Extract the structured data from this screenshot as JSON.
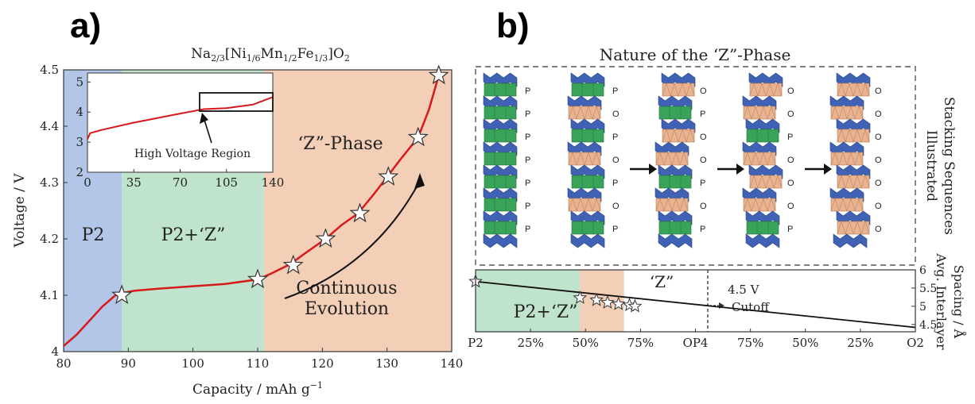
{
  "panel_a": {
    "label": "a)",
    "title": "Na2/3[Ni1/6Mn1/2Fe1/3]O2",
    "region_labels": {
      "p2": "P2",
      "mixed": "P2+‘Z”",
      "z_phase": "‘Z”-Phase"
    },
    "annotation": {
      "line1": "Continuous",
      "line2": "Evolution"
    },
    "inset_label": "High Voltage Region",
    "colors": {
      "p2": "#b4c6e7",
      "mixed": "#bfe3cc",
      "z": "#f3cfb7",
      "curve": "#d7191c"
    }
  },
  "panel_b": {
    "label": "b)",
    "title": "Nature of the ‘Z”-Phase",
    "side_label": {
      "line1": "Illustrated",
      "line2": "Stacking Sequences"
    },
    "stacks": [
      {
        "letters": [
          "P",
          "P",
          "P",
          "P",
          "P",
          "P",
          "P"
        ]
      },
      {
        "letters": [
          "P",
          "O",
          "P",
          "O",
          "P",
          "O",
          "P"
        ]
      },
      {
        "letters": [
          "O",
          "P",
          "O",
          "O",
          "P",
          "O",
          "P"
        ]
      },
      {
        "letters": [
          "O",
          "O",
          "P",
          "O",
          "O",
          "O",
          "P"
        ]
      },
      {
        "letters": [
          "O",
          "O",
          "O",
          "O",
          "O",
          "O",
          "O"
        ]
      }
    ],
    "region_labels": {
      "mixed": "P2+‘Z”",
      "z": "‘Z”"
    },
    "cutoff_label": {
      "line1": "4.5 V",
      "line2": "Cutoff"
    },
    "colors": {
      "blue": "#3f62b5",
      "orange": "#e9b38f",
      "green": "#3aa35a",
      "mixed": "#bfe3cc",
      "z": "#f3cfb7"
    }
  },
  "chart_data": [
    {
      "type": "line",
      "title": "Na2/3[Ni1/6Mn1/2Fe1/3]O2",
      "xlabel": "Capacity / mAh g−1",
      "ylabel": "Voltage / V",
      "xlim": [
        80,
        140
      ],
      "ylim": [
        4.0,
        4.5
      ],
      "x_ticks": [
        "80",
        "90",
        "100",
        "110",
        "120",
        "130",
        "140"
      ],
      "y_ticks": [
        "4",
        "4.1",
        "4.2",
        "4.3",
        "4.4",
        "4.5"
      ],
      "regions": [
        {
          "name": "P2",
          "x": [
            80,
            89
          ]
        },
        {
          "name": "P2+‘Z”",
          "x": [
            89,
            111
          ]
        },
        {
          "name": "‘Z”-Phase",
          "x": [
            111,
            140
          ]
        }
      ],
      "x": [
        80,
        82,
        84,
        86,
        88,
        89,
        91,
        95,
        100,
        105,
        110,
        112,
        115,
        118,
        120.5,
        123,
        125.5,
        128,
        130,
        132,
        134.8,
        136.5,
        138
      ],
      "y": [
        4.01,
        4.03,
        4.055,
        4.08,
        4.1,
        4.104,
        4.108,
        4.112,
        4.116,
        4.12,
        4.128,
        4.138,
        4.155,
        4.18,
        4.2,
        4.225,
        4.245,
        4.28,
        4.31,
        4.34,
        4.38,
        4.43,
        4.49
      ],
      "markers": {
        "x": [
          89,
          110,
          115.5,
          120.5,
          125.8,
          130.2,
          134.8,
          138
        ],
        "y": [
          4.1,
          4.128,
          4.153,
          4.2,
          4.245,
          4.31,
          4.38,
          4.49
        ]
      }
    },
    {
      "type": "line",
      "title": "",
      "xlabel": "",
      "ylabel": "",
      "xlim": [
        0,
        140
      ],
      "ylim": [
        2,
        5.3
      ],
      "x_ticks": [
        "0",
        "35",
        "70",
        "105",
        "140"
      ],
      "y_ticks": [
        "2",
        "3",
        "4",
        "5"
      ],
      "x": [
        0,
        2,
        10,
        35,
        70,
        88,
        105,
        125,
        140
      ],
      "y": [
        3.1,
        3.3,
        3.4,
        3.65,
        3.95,
        4.1,
        4.13,
        4.25,
        4.5
      ]
    },
    {
      "type": "line",
      "title": "",
      "xlabel": "",
      "ylabel": "Avg. Interlayer Spacing / Å",
      "ylim": [
        4.3,
        6.0
      ],
      "x_ticks": [
        "P2",
        "25%",
        "50%",
        "75%",
        "OP4",
        "75%",
        "50%",
        "25%",
        "O2"
      ],
      "y_ticks": [
        "4.5",
        "5",
        "5.5",
        "6"
      ],
      "regions": [
        {
          "name": "P2+‘Z”",
          "x": [
            0,
            0.95
          ]
        },
        {
          "name": "‘Z”",
          "x": [
            0.95,
            1.35
          ]
        }
      ],
      "x": [
        0,
        4
      ],
      "y": [
        5.68,
        4.42
      ],
      "markers": {
        "x": [
          0,
          0.95,
          1.1,
          1.2,
          1.3,
          1.4,
          1.45
        ],
        "y": [
          5.68,
          5.23,
          5.17,
          5.1,
          5.06,
          5.03,
          5.0
        ]
      }
    }
  ]
}
